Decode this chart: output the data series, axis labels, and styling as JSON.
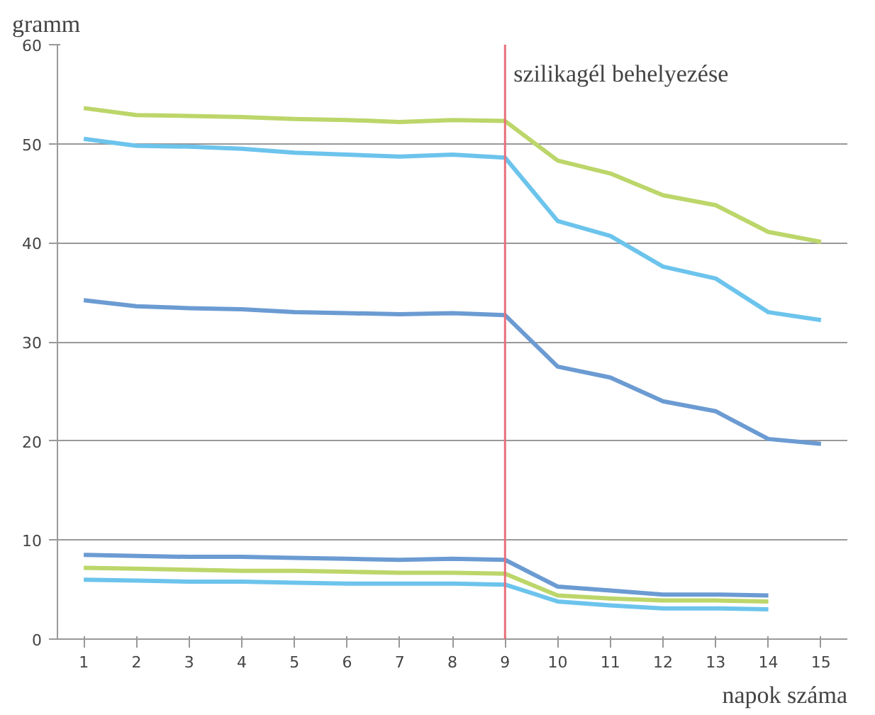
{
  "chart_data": {
    "type": "line",
    "ylabel": "gramm",
    "xlabel": "napok száma",
    "x": [
      1,
      2,
      3,
      4,
      5,
      6,
      7,
      8,
      9,
      10,
      11,
      12,
      13,
      14,
      15
    ],
    "xlim": [
      0.5,
      15.5
    ],
    "xticks": [
      1,
      2,
      3,
      4,
      5,
      6,
      7,
      8,
      9,
      10,
      11,
      12,
      13,
      14,
      15
    ],
    "ylim": [
      0,
      60
    ],
    "yticks": [
      0,
      10,
      20,
      30,
      40,
      50,
      60
    ],
    "grid": "y",
    "marker": "none",
    "line_style": "solid",
    "series": [
      {
        "color": "#bcd66a",
        "values": [
          53.6,
          52.9,
          52.8,
          52.7,
          52.5,
          52.4,
          52.2,
          52.4,
          52.3,
          48.3,
          47.0,
          44.8,
          43.8,
          41.1,
          40.1
        ]
      },
      {
        "color": "#6cc4ec",
        "values": [
          50.5,
          49.8,
          49.7,
          49.5,
          49.1,
          48.9,
          48.7,
          48.9,
          48.6,
          42.2,
          40.7,
          37.6,
          36.4,
          33.0,
          32.2
        ]
      },
      {
        "color": "#6b9bd2",
        "values": [
          34.2,
          33.6,
          33.4,
          33.3,
          33.0,
          32.9,
          32.8,
          32.9,
          32.7,
          27.5,
          26.4,
          24.0,
          23.0,
          20.2,
          19.7
        ]
      },
      {
        "color": "#6b9bd2",
        "values": [
          8.5,
          8.4,
          8.3,
          8.3,
          8.2,
          8.1,
          8.0,
          8.1,
          8.0,
          5.3,
          4.9,
          4.5,
          4.5,
          4.4,
          null
        ]
      },
      {
        "color": "#bcd66a",
        "values": [
          7.2,
          7.1,
          7.0,
          6.9,
          6.9,
          6.8,
          6.7,
          6.7,
          6.6,
          4.4,
          4.1,
          3.9,
          3.9,
          3.8,
          null
        ]
      },
      {
        "color": "#6cc4ec",
        "values": [
          6.0,
          5.9,
          5.8,
          5.8,
          5.7,
          5.6,
          5.6,
          5.6,
          5.5,
          3.8,
          3.4,
          3.1,
          3.1,
          3.0,
          null
        ]
      }
    ],
    "ref_lines": [
      {
        "axis": "x",
        "value": 9,
        "label": "szilikagél behelyezése",
        "color": "#e8707a",
        "line_style": "solid"
      }
    ]
  }
}
